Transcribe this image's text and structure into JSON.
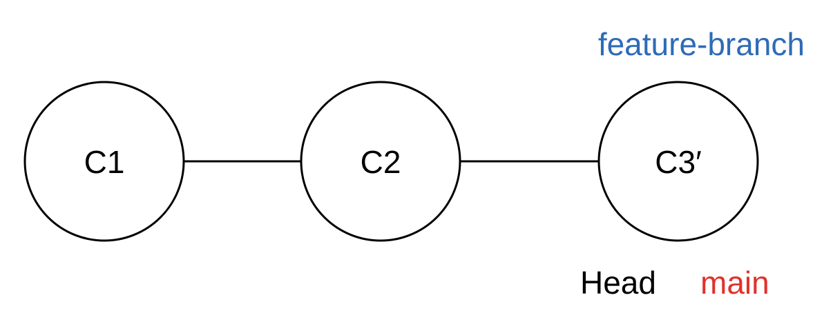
{
  "colors": {
    "feature_branch": "#2e6bb7",
    "head": "#000000",
    "main": "#e0322b",
    "stroke": "#000000"
  },
  "commits": [
    {
      "id": "c1",
      "label": "C1"
    },
    {
      "id": "c2",
      "label": "C2"
    },
    {
      "id": "c3",
      "label": "C3′"
    }
  ],
  "refs": {
    "feature_branch": "feature-branch",
    "head": "Head",
    "main": "main"
  }
}
